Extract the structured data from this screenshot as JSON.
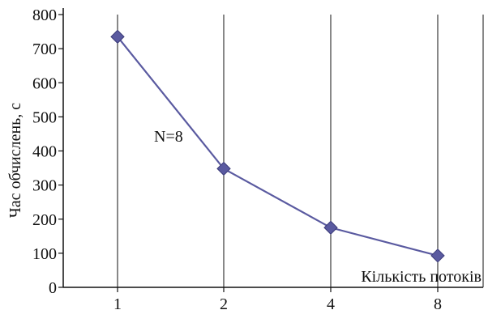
{
  "chart_data": {
    "type": "line",
    "x": [
      "1",
      "2",
      "4",
      "8"
    ],
    "y": [
      735,
      348,
      175,
      93
    ],
    "xlabel": "Кількість потоків",
    "ylabel": "Час обчислень, с",
    "ylim": [
      0,
      800
    ],
    "yticks": [
      "0",
      "100",
      "200",
      "300",
      "400",
      "500",
      "600",
      "700",
      "800"
    ],
    "annotation": "N=8",
    "grid": "vertical",
    "colors": {
      "line": "#5a5aa0",
      "marker": "#5a5aa0"
    }
  }
}
